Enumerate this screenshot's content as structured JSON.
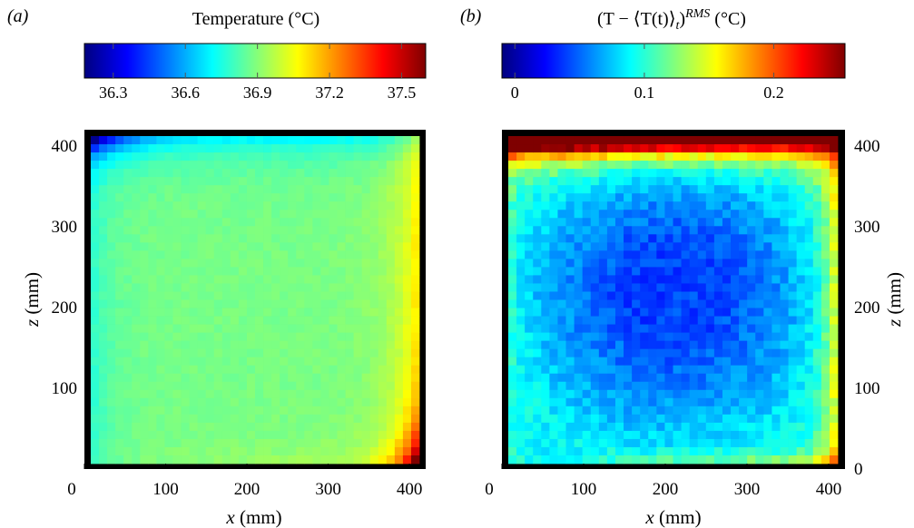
{
  "colors": {
    "jet": [
      "#00007F",
      "#0000FF",
      "#007FFF",
      "#00FFFF",
      "#7FFF7F",
      "#FFFF00",
      "#FF7F00",
      "#FF0000",
      "#7F0000"
    ],
    "frame": "#000000"
  },
  "chart_data": [
    {
      "type": "heatmap",
      "panel_label": "(a)",
      "title": "Temperature (°C)",
      "xlabel_var": "x",
      "xlabel_unit": " (mm)",
      "ylabel_var": "z",
      "ylabel_unit": " (mm)",
      "x_ticks": [
        0,
        100,
        200,
        300,
        400
      ],
      "y_ticks": [
        100,
        200,
        300,
        400
      ],
      "xlim": [
        0,
        420
      ],
      "ylim": [
        0,
        420
      ],
      "grid": false,
      "y_axis_side": "left",
      "colorbar": {
        "min": 36.18,
        "max": 37.6,
        "ticks": [
          36.3,
          36.6,
          36.9,
          37.2,
          37.5
        ],
        "tick_labels": [
          "36.3",
          "36.6",
          "36.9",
          "37.2",
          "37.5"
        ],
        "colormap": "jet"
      },
      "field": {
        "cells_x": 40,
        "cells_z": 40,
        "extent_x": [
          12,
          408
        ],
        "extent_z": [
          8,
          412
        ],
        "core_value": 36.88,
        "description_key": "warm right wall, cold top-left corner, hot bottom-right corner"
      }
    },
    {
      "type": "heatmap",
      "panel_label": "(b)",
      "title_main": "(T − ⟨T(t)⟩",
      "title_sub": "t",
      "title_close": ")",
      "title_sup": "RMS",
      "title_unit": " (°C)",
      "xlabel_var": "x",
      "xlabel_unit": " (mm)",
      "ylabel_var": "z",
      "ylabel_unit": " (mm)",
      "x_ticks": [
        0,
        100,
        200,
        300,
        400
      ],
      "y_ticks": [
        0,
        100,
        200,
        300,
        400
      ],
      "xlim": [
        0,
        420
      ],
      "ylim": [
        0,
        420
      ],
      "grid": false,
      "y_axis_side": "right",
      "colorbar": {
        "min": -0.01,
        "max": 0.255,
        "ticks": [
          0,
          0.1,
          0.2
        ],
        "tick_labels": [
          "0",
          "0.1",
          "0.2"
        ],
        "colormap": "jet"
      },
      "field": {
        "cells_x": 40,
        "cells_z": 40,
        "extent_x": [
          12,
          408
        ],
        "extent_z": [
          8,
          412
        ],
        "core_value": 0.04,
        "description_key": "low fluctuation in centre, high along top edge and bottom-right"
      }
    }
  ]
}
